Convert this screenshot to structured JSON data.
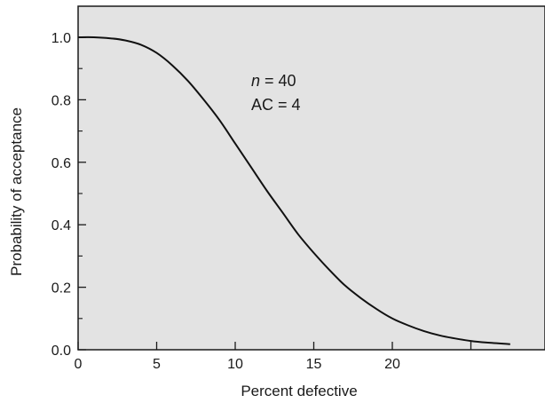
{
  "chart_data": {
    "type": "line",
    "title": "",
    "xlabel": "Percent defective",
    "ylabel": "Probability of acceptance",
    "xlim": [
      0,
      30
    ],
    "ylim": [
      0,
      1.1
    ],
    "x_ticks": [
      0,
      5,
      10,
      15,
      20,
      25
    ],
    "x_tick_labels": [
      "0",
      "5",
      "10",
      "15",
      "20",
      ""
    ],
    "y_ticks": [
      0.0,
      0.2,
      0.4,
      0.6,
      0.8,
      1.0
    ],
    "y_tick_labels": [
      "0.0",
      "0.2",
      "0.4",
      "0.6",
      "0.8",
      "1.0"
    ],
    "y_minor_ticks": [
      0.1,
      0.3,
      0.5,
      0.7,
      0.9
    ],
    "grid": false,
    "plot_background": "#e3e3e3",
    "line_color": "#111111",
    "annotation": {
      "line1_var": "n",
      "line1_rest": " = 40",
      "line2": "AC = 4"
    },
    "series": [
      {
        "x": [
          0,
          1,
          2,
          3,
          4,
          5,
          6,
          7,
          8,
          9,
          10,
          11,
          12,
          13,
          14,
          15,
          16,
          17,
          18,
          19,
          20,
          21,
          22,
          23,
          24,
          25,
          26,
          27.5
        ],
        "values": [
          1.0,
          1.0,
          0.997,
          0.99,
          0.976,
          0.95,
          0.91,
          0.86,
          0.8,
          0.735,
          0.66,
          0.585,
          0.51,
          0.44,
          0.37,
          0.31,
          0.255,
          0.205,
          0.165,
          0.13,
          0.1,
          0.078,
          0.06,
          0.046,
          0.036,
          0.028,
          0.023,
          0.018
        ]
      }
    ]
  }
}
